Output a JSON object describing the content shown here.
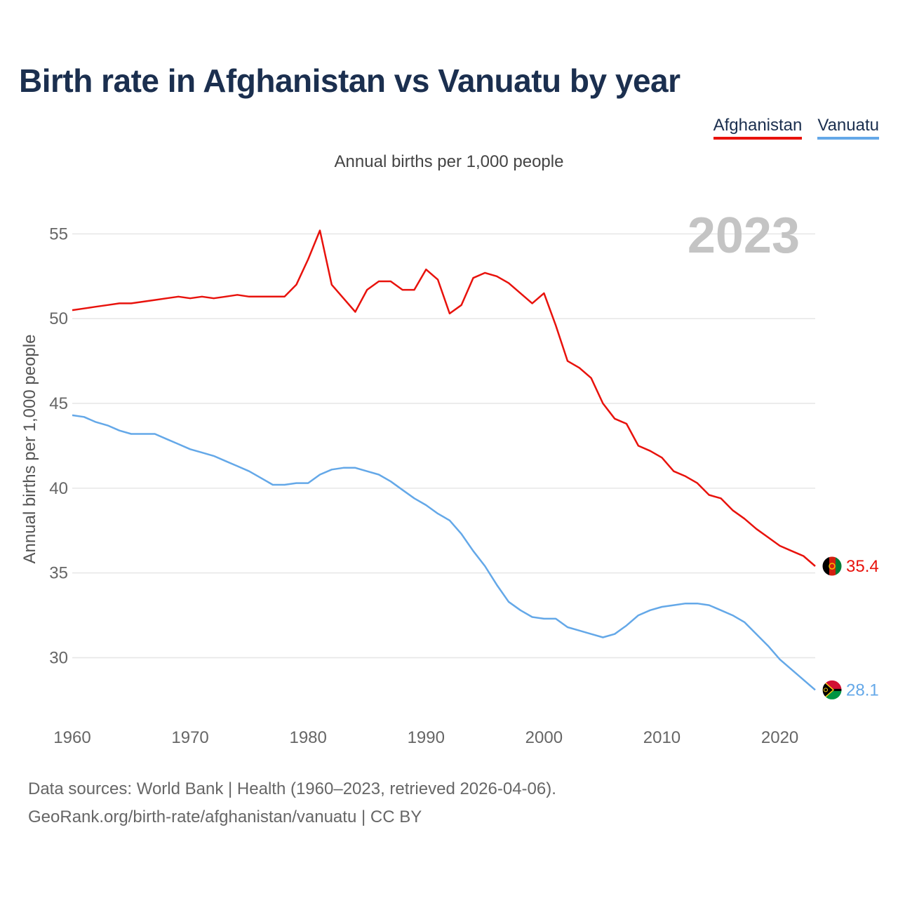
{
  "page": {
    "title": "Birth rate in Afghanistan vs Vanuatu by year",
    "subtitle": "Annual births per 1,000 people",
    "year_watermark": "2023",
    "footer_line1": "Data sources: World Bank | Health (1960–2023, retrieved 2026-04-06).",
    "footer_line2": "GeoRank.org/birth-rate/afghanistan/vanuatu | CC BY"
  },
  "legend": [
    {
      "label": "Afghanistan",
      "color": "#e8120c"
    },
    {
      "label": "Vanuatu",
      "color": "#64a8e8"
    }
  ],
  "chart_data": {
    "type": "line",
    "title": "Birth rate in Afghanistan vs Vanuatu by year",
    "xlabel": "",
    "ylabel": "Annual births per 1,000 people",
    "xlim": [
      1960,
      2023
    ],
    "ylim": [
      27,
      57
    ],
    "x_ticks": [
      1960,
      1970,
      1980,
      1990,
      2000,
      2010,
      2020
    ],
    "y_ticks": [
      30,
      35,
      40,
      45,
      50,
      55
    ],
    "grid": true,
    "x": [
      1960,
      1961,
      1962,
      1963,
      1964,
      1965,
      1966,
      1967,
      1968,
      1969,
      1970,
      1971,
      1972,
      1973,
      1974,
      1975,
      1976,
      1977,
      1978,
      1979,
      1980,
      1981,
      1982,
      1983,
      1984,
      1985,
      1986,
      1987,
      1988,
      1989,
      1990,
      1991,
      1992,
      1993,
      1994,
      1995,
      1996,
      1997,
      1998,
      1999,
      2000,
      2001,
      2002,
      2003,
      2004,
      2005,
      2006,
      2007,
      2008,
      2009,
      2010,
      2011,
      2012,
      2013,
      2014,
      2015,
      2016,
      2017,
      2018,
      2019,
      2020,
      2021,
      2022,
      2023
    ],
    "series": [
      {
        "name": "Afghanistan",
        "color": "#e8120c",
        "end_label": "35.4",
        "values": [
          50.5,
          50.6,
          50.7,
          50.8,
          50.9,
          50.9,
          51.0,
          51.1,
          51.2,
          51.3,
          51.2,
          51.3,
          51.2,
          51.3,
          51.4,
          51.3,
          51.3,
          51.3,
          51.3,
          52.0,
          53.5,
          55.2,
          52.0,
          51.2,
          50.4,
          51.7,
          52.2,
          52.2,
          51.7,
          51.7,
          52.9,
          52.3,
          50.3,
          50.8,
          52.4,
          52.7,
          52.5,
          52.1,
          51.5,
          50.9,
          51.5,
          49.6,
          47.5,
          47.1,
          46.5,
          45.0,
          44.1,
          43.8,
          42.5,
          42.2,
          41.8,
          41.0,
          40.7,
          40.3,
          39.6,
          39.4,
          38.7,
          38.2,
          37.6,
          37.1,
          36.6,
          36.3,
          36.0,
          35.4
        ]
      },
      {
        "name": "Vanuatu",
        "color": "#64a8e8",
        "end_label": "28.1",
        "values": [
          44.3,
          44.2,
          43.9,
          43.7,
          43.4,
          43.2,
          43.2,
          43.2,
          42.9,
          42.6,
          42.3,
          42.1,
          41.9,
          41.6,
          41.3,
          41.0,
          40.6,
          40.2,
          40.2,
          40.3,
          40.3,
          40.8,
          41.1,
          41.2,
          41.2,
          41.0,
          40.8,
          40.4,
          39.9,
          39.4,
          39.0,
          38.5,
          38.1,
          37.3,
          36.3,
          35.4,
          34.3,
          33.3,
          32.8,
          32.4,
          32.3,
          32.3,
          31.8,
          31.6,
          31.4,
          31.2,
          31.4,
          31.9,
          32.5,
          32.8,
          33.0,
          33.1,
          33.2,
          33.2,
          33.1,
          32.8,
          32.5,
          32.1,
          31.4,
          30.7,
          29.9,
          29.3,
          28.7,
          28.1
        ]
      }
    ]
  }
}
